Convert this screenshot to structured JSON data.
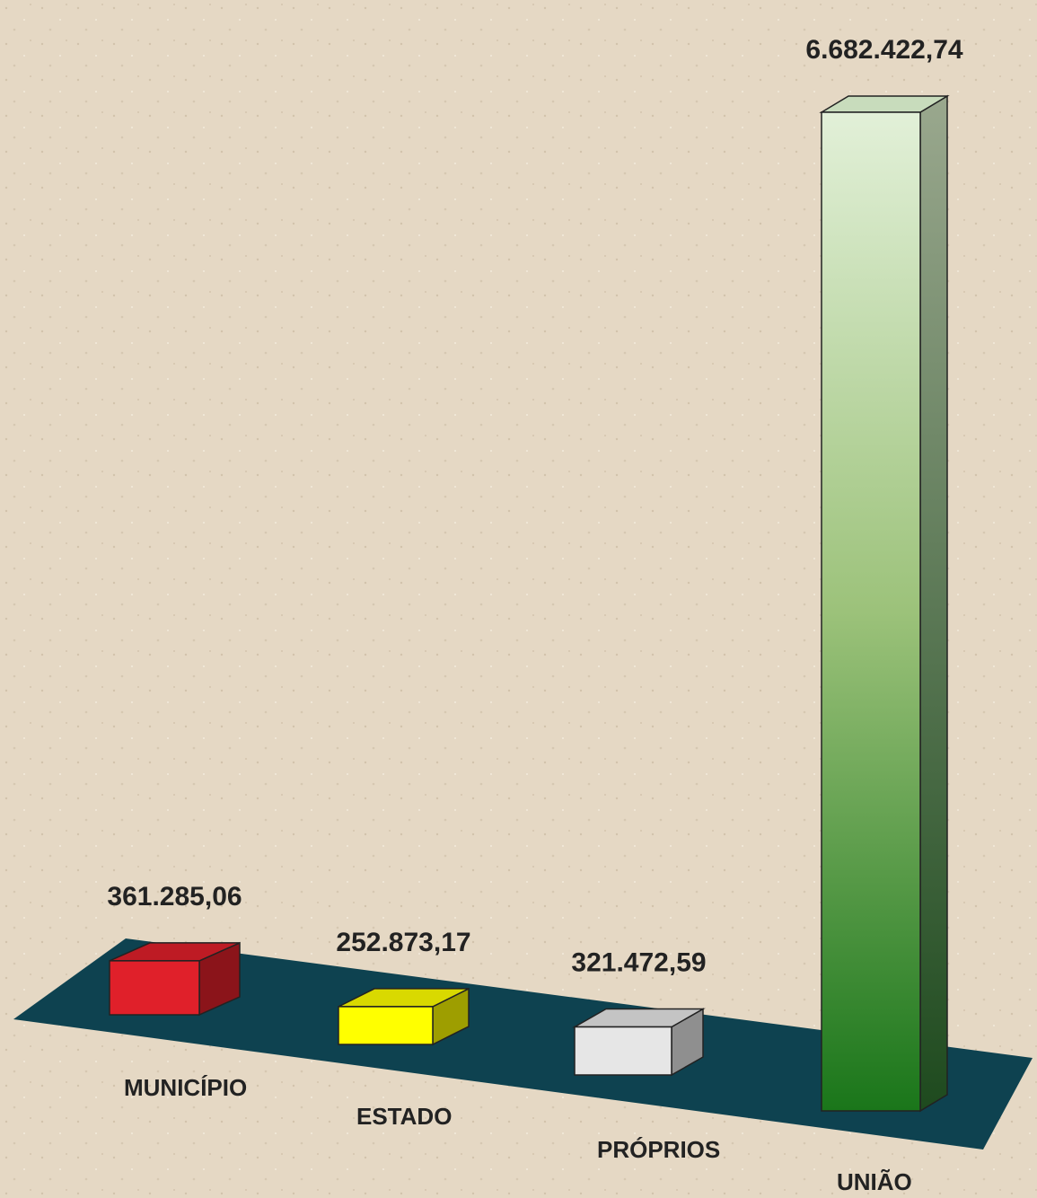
{
  "chart_data": {
    "type": "bar",
    "categories": [
      "MUNICÍPIO",
      "ESTADO",
      "PRÓPRIOS",
      "UNIÃO"
    ],
    "values": [
      361285.06,
      252873.17,
      321472.59,
      6682422.74
    ],
    "value_labels": [
      "361.285,06",
      "252.873,17",
      "321.472,59",
      "6.682.422,74"
    ],
    "colors": [
      "#e0202a",
      "#ffff00",
      "#e6e6e6",
      "#2e8b2e"
    ]
  }
}
